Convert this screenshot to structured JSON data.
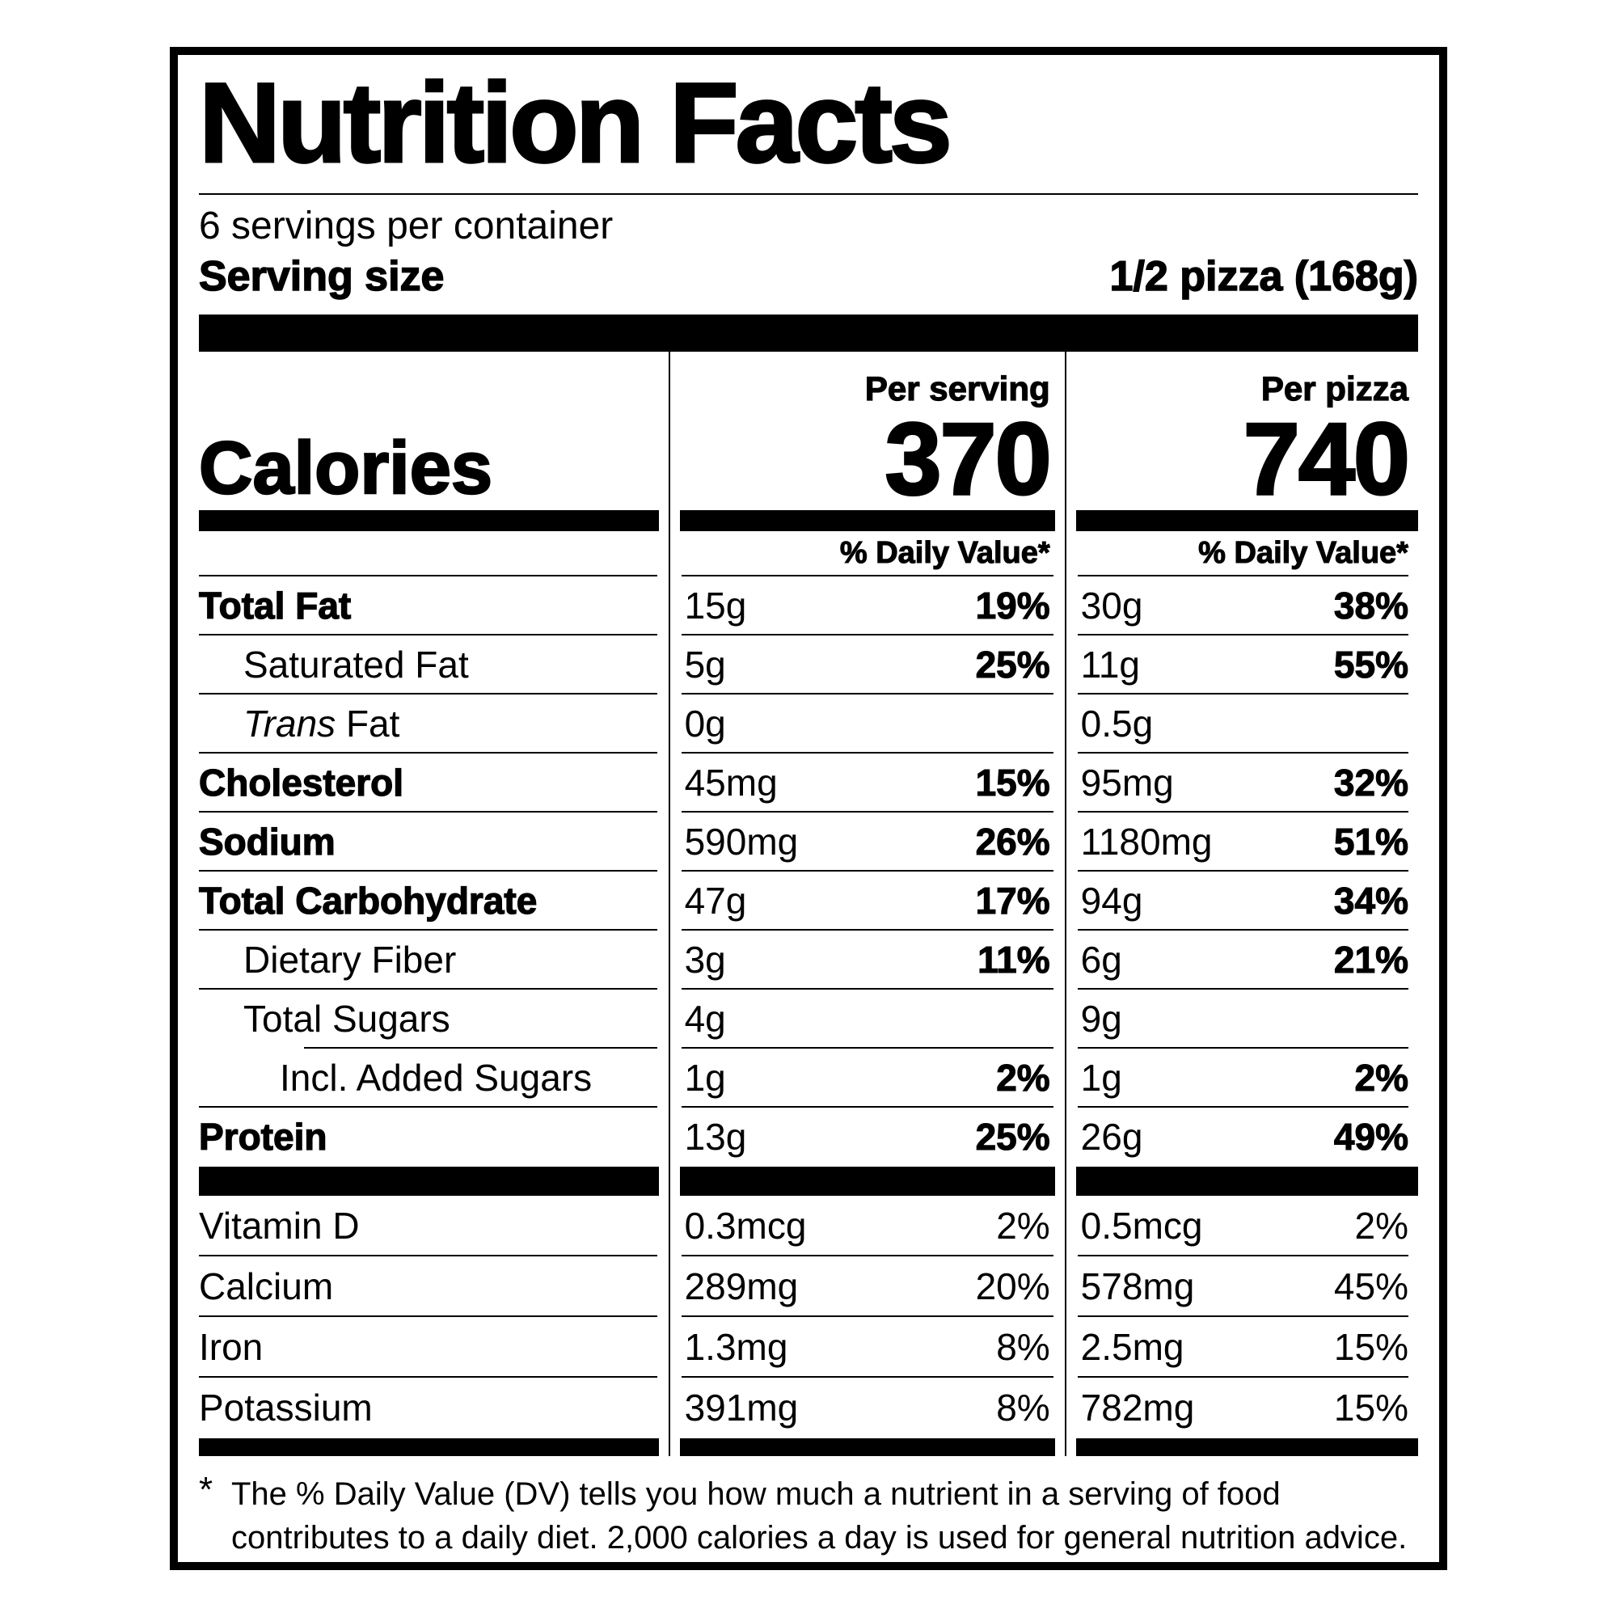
{
  "colors": {
    "ink": "#000000",
    "paper": "#ffffff"
  },
  "label": {
    "title": "Nutrition Facts",
    "servings_per_container": "6 servings per container",
    "serving_size_label": "Serving size",
    "serving_size_value": "1/2 pizza (168g)",
    "calories": {
      "label": "Calories",
      "columns": [
        {
          "header": "Per serving",
          "value": "370"
        },
        {
          "header": "Per pizza",
          "value": "740"
        }
      ],
      "daily_value_header": "% Daily Value*"
    },
    "table": {
      "rows": [
        {
          "key": "total-fat",
          "label": "Total Fat",
          "bold": true,
          "indent": 0,
          "serving_amount": "15g",
          "serving_dv": "19%",
          "pizza_amount": "30g",
          "pizza_dv": "38%",
          "dv_bold": true,
          "separator": "full"
        },
        {
          "key": "saturated-fat",
          "label": "Saturated Fat",
          "bold": false,
          "indent": 1,
          "serving_amount": "5g",
          "serving_dv": "25%",
          "pizza_amount": "11g",
          "pizza_dv": "55%",
          "dv_bold": true,
          "separator": "full"
        },
        {
          "key": "trans-fat",
          "label": "Trans Fat",
          "italic_prefix": "Trans",
          "bold": false,
          "indent": 1,
          "serving_amount": "0g",
          "serving_dv": "",
          "pizza_amount": "0.5g",
          "pizza_dv": "",
          "dv_bold": true,
          "separator": "full"
        },
        {
          "key": "cholesterol",
          "label": "Cholesterol",
          "bold": true,
          "indent": 0,
          "serving_amount": "45mg",
          "serving_dv": "15%",
          "pizza_amount": "95mg",
          "pizza_dv": "32%",
          "dv_bold": true,
          "separator": "full"
        },
        {
          "key": "sodium",
          "label": "Sodium",
          "bold": true,
          "indent": 0,
          "serving_amount": "590mg",
          "serving_dv": "26%",
          "pizza_amount": "1180mg",
          "pizza_dv": "51%",
          "dv_bold": true,
          "separator": "full"
        },
        {
          "key": "total-carbohydrate",
          "label": "Total Carbohydrate",
          "bold": true,
          "indent": 0,
          "serving_amount": "47g",
          "serving_dv": "17%",
          "pizza_amount": "94g",
          "pizza_dv": "34%",
          "dv_bold": true,
          "separator": "full"
        },
        {
          "key": "dietary-fiber",
          "label": "Dietary Fiber",
          "bold": false,
          "indent": 1,
          "serving_amount": "3g",
          "serving_dv": "11%",
          "pizza_amount": "6g",
          "pizza_dv": "21%",
          "dv_bold": true,
          "separator": "full"
        },
        {
          "key": "total-sugars",
          "label": "Total Sugars",
          "bold": false,
          "indent": 1,
          "serving_amount": "4g",
          "serving_dv": "",
          "pizza_amount": "9g",
          "pizza_dv": "",
          "dv_bold": true,
          "separator": "inset"
        },
        {
          "key": "added-sugars",
          "label": "Incl. Added Sugars",
          "bold": false,
          "indent": 2,
          "serving_amount": "1g",
          "serving_dv": "2%",
          "pizza_amount": "1g",
          "pizza_dv": "2%",
          "dv_bold": true,
          "separator": "full"
        },
        {
          "key": "protein",
          "label": "Protein",
          "bold": true,
          "indent": 0,
          "serving_amount": "13g",
          "serving_dv": "25%",
          "pizza_amount": "26g",
          "pizza_dv": "49%",
          "dv_bold": true,
          "separator": "none"
        }
      ]
    },
    "micronutrients": {
      "rows": [
        {
          "key": "vitamin-d",
          "label": "Vitamin D",
          "serving_amount": "0.3mcg",
          "serving_dv": "2%",
          "pizza_amount": "0.5mcg",
          "pizza_dv": "2%",
          "separator": "full"
        },
        {
          "key": "calcium",
          "label": "Calcium",
          "serving_amount": "289mg",
          "serving_dv": "20%",
          "pizza_amount": "578mg",
          "pizza_dv": "45%",
          "separator": "full"
        },
        {
          "key": "iron",
          "label": "Iron",
          "serving_amount": "1.3mg",
          "serving_dv": "8%",
          "pizza_amount": "2.5mg",
          "pizza_dv": "15%",
          "separator": "full"
        },
        {
          "key": "potassium",
          "label": "Potassium",
          "serving_amount": "391mg",
          "serving_dv": "8%",
          "pizza_amount": "782mg",
          "pizza_dv": "15%",
          "separator": "none"
        }
      ]
    },
    "footnote_marker": "*",
    "footnote_lines": [
      "The % Daily Value (DV) tells you how much a nutrient in a serving of food",
      "contributes to a daily diet. 2,000 calories a day is used for general nutrition advice."
    ]
  }
}
